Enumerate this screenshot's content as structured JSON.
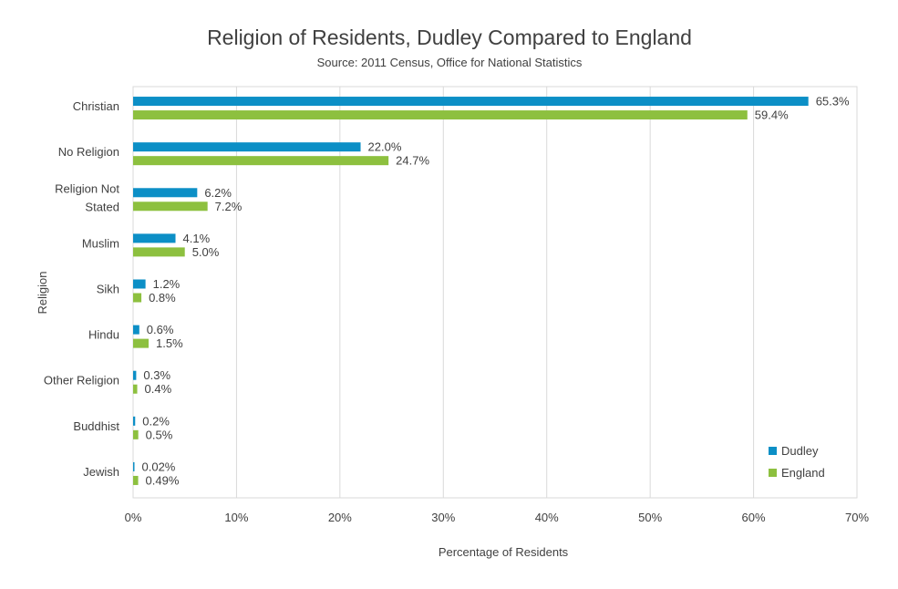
{
  "chart_data": {
    "type": "bar",
    "orientation": "horizontal",
    "title": "Religion of Residents, Dudley Compared to England",
    "subtitle": "Source: 2011 Census, Office for National Statistics",
    "xlabel": "Percentage of Residents",
    "ylabel": "Religion",
    "xlim": [
      0,
      70
    ],
    "x_ticks": [
      "0%",
      "10%",
      "20%",
      "30%",
      "40%",
      "50%",
      "60%",
      "70%"
    ],
    "grid": "vertical",
    "legend_position": "bottom-right",
    "categories": [
      [
        "Christian"
      ],
      [
        "No Religion"
      ],
      [
        "Religion Not",
        "Stated"
      ],
      [
        "Muslim"
      ],
      [
        "Sikh"
      ],
      [
        "Hindu"
      ],
      [
        "Other Religion"
      ],
      [
        "Buddhist"
      ],
      [
        "Jewish"
      ]
    ],
    "series": [
      {
        "name": "Dudley",
        "color": "#0c8fc6",
        "values": [
          65.3,
          22.0,
          6.2,
          4.1,
          1.2,
          0.6,
          0.3,
          0.2,
          0.02
        ],
        "labels": [
          "65.3%",
          "22.0%",
          "6.2%",
          "4.1%",
          "1.2%",
          "0.6%",
          "0.3%",
          "0.2%",
          "0.02%"
        ]
      },
      {
        "name": "England",
        "color": "#8dc03f",
        "values": [
          59.4,
          24.7,
          7.2,
          5.0,
          0.8,
          1.5,
          0.4,
          0.5,
          0.49
        ],
        "labels": [
          "59.4%",
          "24.7%",
          "7.2%",
          "5.0%",
          "0.8%",
          "1.5%",
          "0.4%",
          "0.5%",
          "0.49%"
        ]
      }
    ]
  }
}
